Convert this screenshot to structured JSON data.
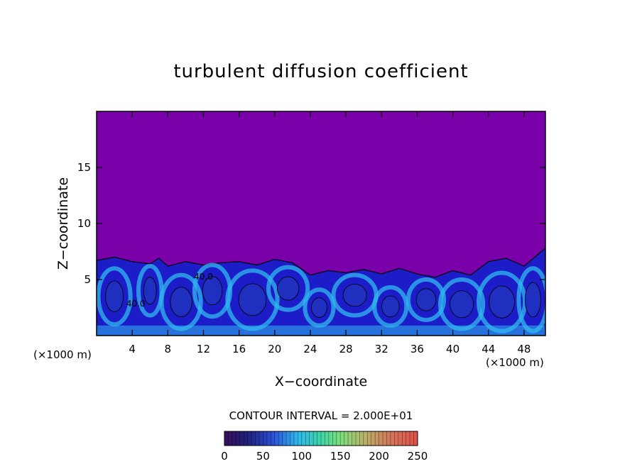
{
  "chart_data": {
    "type": "heatmap",
    "title": "turbulent diffusion coefficient",
    "xlabel": "X−coordinate",
    "ylabel": "Z−coordinate",
    "x_unit_left": "(×1000 m)",
    "x_unit_right": "(×1000 m)",
    "xlim": [
      0,
      50.4
    ],
    "ylim": [
      0,
      20
    ],
    "xticks": [
      4,
      8,
      12,
      16,
      20,
      24,
      28,
      32,
      36,
      40,
      44,
      48
    ],
    "yticks": [
      5,
      10,
      15
    ],
    "contour_interval_label": "CONTOUR INTERVAL = 2.000E+01",
    "contour_labels": [
      {
        "text": "40.0",
        "x": 12.0,
        "z": 5.0
      },
      {
        "text": "40.0",
        "x": 4.4,
        "z": 2.6
      }
    ],
    "boundary_layer_top_km": [
      [
        0,
        6.7
      ],
      [
        2,
        7.0
      ],
      [
        4,
        6.6
      ],
      [
        6,
        6.4
      ],
      [
        7,
        6.9
      ],
      [
        8,
        6.2
      ],
      [
        10,
        6.6
      ],
      [
        12,
        6.3
      ],
      [
        14,
        6.5
      ],
      [
        16,
        6.6
      ],
      [
        18,
        6.3
      ],
      [
        20,
        6.8
      ],
      [
        22,
        6.5
      ],
      [
        24,
        5.4
      ],
      [
        26,
        5.8
      ],
      [
        28,
        5.6
      ],
      [
        30,
        5.9
      ],
      [
        32,
        5.5
      ],
      [
        34,
        6.0
      ],
      [
        36,
        5.5
      ],
      [
        38,
        5.2
      ],
      [
        40,
        5.8
      ],
      [
        42,
        5.4
      ],
      [
        44,
        6.6
      ],
      [
        46,
        6.9
      ],
      [
        48,
        6.2
      ],
      [
        50.4,
        7.8
      ]
    ],
    "colorbar": {
      "min": 0,
      "max": 250,
      "ticks": [
        0,
        50,
        100,
        150,
        200,
        250
      ]
    },
    "colors": {
      "background_purple": "#7a00aa",
      "boundary_blue": "#1c1cc8",
      "cyan": "#2fb8ee"
    }
  }
}
